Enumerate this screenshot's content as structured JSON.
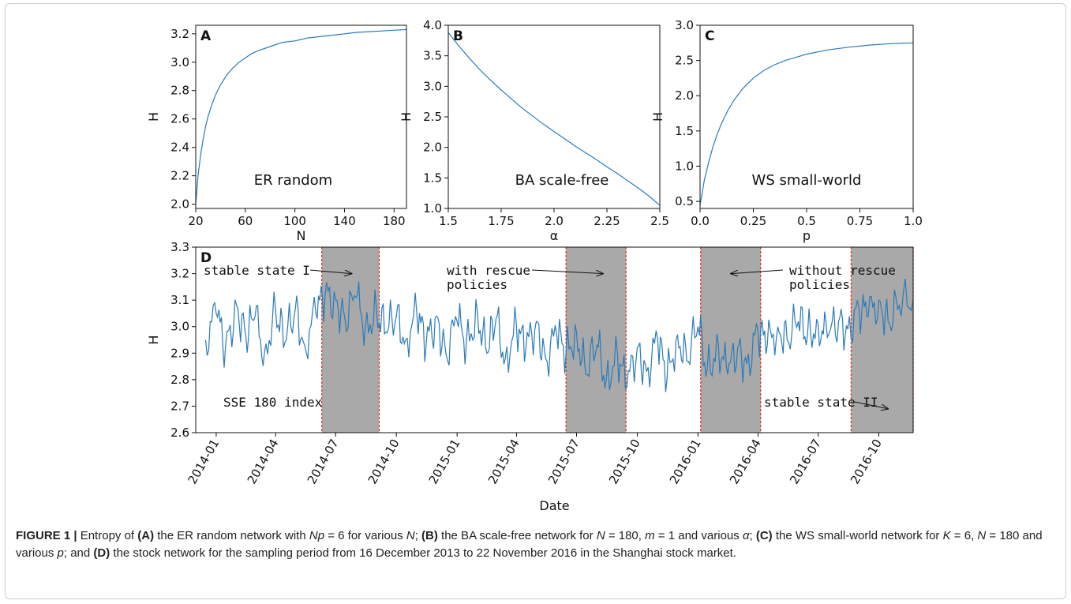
{
  "chart_data": [
    {
      "type": "line",
      "panel_label": "A",
      "annotation": "ER random",
      "xlabel": "N",
      "ylabel": "H",
      "xlim": [
        20,
        190
      ],
      "ylim": [
        1.97,
        3.26
      ],
      "xticks": [
        20,
        60,
        100,
        140,
        180
      ],
      "yticks": [
        2.0,
        2.2,
        2.4,
        2.6,
        2.8,
        3.0,
        3.2
      ],
      "ytick_labels": [
        "2.0",
        "2.2",
        "2.4",
        "2.6",
        "2.8",
        "3.0",
        "3.2"
      ],
      "grid": false,
      "series": [
        {
          "color": "#2b7bba",
          "x": [
            20,
            22,
            24,
            26,
            28,
            30,
            33,
            36,
            40,
            45,
            50,
            55,
            60,
            65,
            70,
            80,
            90,
            100,
            110,
            120,
            130,
            140,
            150,
            160,
            170,
            180,
            190
          ],
          "y": [
            2.0,
            2.21,
            2.35,
            2.46,
            2.55,
            2.62,
            2.7,
            2.77,
            2.84,
            2.91,
            2.96,
            3.0,
            3.03,
            3.06,
            3.08,
            3.11,
            3.14,
            3.15,
            3.17,
            3.18,
            3.19,
            3.2,
            3.21,
            3.215,
            3.22,
            3.225,
            3.23
          ]
        }
      ]
    },
    {
      "type": "line",
      "panel_label": "B",
      "annotation": "BA scale-free",
      "xlabel": "α",
      "ylabel": "H",
      "xlim": [
        1.5,
        2.5
      ],
      "ylim": [
        1.0,
        4.0
      ],
      "xticks": [
        1.5,
        1.75,
        2.0,
        2.25,
        2.5
      ],
      "xtick_labels": [
        "1.5",
        "1.75",
        "2.0",
        "2.25",
        "2.5"
      ],
      "yticks": [
        1.0,
        1.5,
        2.0,
        2.5,
        3.0,
        3.5,
        4.0
      ],
      "ytick_labels": [
        "1.0",
        "1.5",
        "2.0",
        "2.5",
        "3.0",
        "3.5",
        "4.0"
      ],
      "grid": false,
      "series": [
        {
          "color": "#2b7bba",
          "x": [
            1.5,
            1.55,
            1.6,
            1.65,
            1.7,
            1.75,
            1.8,
            1.85,
            1.9,
            1.95,
            2.0,
            2.05,
            2.1,
            2.15,
            2.2,
            2.25,
            2.3,
            2.35,
            2.4,
            2.45,
            2.5
          ],
          "y": [
            3.88,
            3.66,
            3.46,
            3.27,
            3.1,
            2.94,
            2.79,
            2.64,
            2.51,
            2.38,
            2.26,
            2.14,
            2.02,
            1.91,
            1.8,
            1.68,
            1.57,
            1.45,
            1.33,
            1.2,
            1.05
          ]
        }
      ]
    },
    {
      "type": "line",
      "panel_label": "C",
      "annotation": "WS small-world",
      "xlabel": "p",
      "ylabel": "H",
      "xlim": [
        0.0,
        1.0
      ],
      "ylim": [
        0.4,
        3.0
      ],
      "xticks": [
        0.0,
        0.25,
        0.5,
        0.75,
        1.0
      ],
      "xtick_labels": [
        "0.0",
        "0.25",
        "0.5",
        "0.75",
        "1.0"
      ],
      "yticks": [
        0.5,
        1.0,
        1.5,
        2.0,
        2.5,
        3.0
      ],
      "ytick_labels": [
        "0.5",
        "1.0",
        "1.5",
        "2.0",
        "2.5",
        "3.0"
      ],
      "grid": false,
      "series": [
        {
          "color": "#2b7bba",
          "x": [
            0.0,
            0.01,
            0.02,
            0.04,
            0.06,
            0.08,
            0.1,
            0.13,
            0.16,
            0.2,
            0.25,
            0.3,
            0.35,
            0.4,
            0.5,
            0.6,
            0.7,
            0.8,
            0.9,
            1.0
          ],
          "y": [
            0.45,
            0.62,
            0.8,
            1.05,
            1.27,
            1.45,
            1.6,
            1.79,
            1.94,
            2.1,
            2.25,
            2.36,
            2.44,
            2.5,
            2.59,
            2.65,
            2.69,
            2.72,
            2.74,
            2.75
          ]
        }
      ]
    },
    {
      "type": "line",
      "panel_label": "D",
      "xlabel": "Date",
      "ylabel": "H",
      "xlim": [
        "2013-12-01",
        "2016-11-22"
      ],
      "ylim": [
        2.6,
        3.3
      ],
      "xtick_dates": [
        "2014-01-01",
        "2014-04-01",
        "2014-07-01",
        "2014-10-01",
        "2015-01-01",
        "2015-04-01",
        "2015-07-01",
        "2015-10-01",
        "2016-01-01",
        "2016-04-01",
        "2016-07-01",
        "2016-10-01"
      ],
      "xtick_labels": [
        "2014-01",
        "2014-04",
        "2014-07",
        "2014-10",
        "2015-01",
        "2015-04",
        "2015-07",
        "2015-10",
        "2016-01",
        "2016-04",
        "2016-07",
        "2016-10"
      ],
      "yticks": [
        2.6,
        2.7,
        2.8,
        2.9,
        3.0,
        3.1,
        3.2,
        3.3
      ],
      "ytick_labels": [
        "2.6",
        "2.7",
        "2.8",
        "2.9",
        "3.0",
        "3.1",
        "3.2",
        "3.3"
      ],
      "grid": false,
      "shaded_periods": [
        [
          "2014-06-10",
          "2014-09-05"
        ],
        [
          "2015-06-15",
          "2015-09-14"
        ],
        [
          "2016-01-05",
          "2016-04-05"
        ],
        [
          "2016-08-20",
          "2016-11-22"
        ]
      ],
      "shade_color": "#a9a9a9",
      "boundary_color": "#e0301e",
      "annotations": [
        {
          "text": "stable state I",
          "arrow_to_date": "2014-07-25",
          "arrow_to_y": 3.2
        },
        {
          "text": "with rescue",
          "text2": "policies",
          "arrow_to_date": "2015-08-10",
          "arrow_to_y": 3.2
        },
        {
          "text": "without rescue",
          "text2": "policies",
          "arrow_to_date": "2016-02-20",
          "arrow_to_y": 3.2
        },
        {
          "text": "SSE 180 index"
        },
        {
          "text": "stable state II",
          "arrow_to_date": "2016-10-15",
          "arrow_to_y": 2.69
        }
      ],
      "series": [
        {
          "color": "#2b7bba",
          "x": [
            "2013-12-16",
            "2014-01-01",
            "2014-01-15",
            "2014-02-01",
            "2014-02-15",
            "2014-03-01",
            "2014-03-15",
            "2014-04-01",
            "2014-04-15",
            "2014-05-01",
            "2014-05-15",
            "2014-06-01",
            "2014-06-15",
            "2014-07-01",
            "2014-07-15",
            "2014-08-01",
            "2014-08-15",
            "2014-09-01",
            "2014-09-15",
            "2014-10-01",
            "2014-10-15",
            "2014-11-01",
            "2014-11-15",
            "2014-12-01",
            "2014-12-15",
            "2015-01-01",
            "2015-01-15",
            "2015-02-01",
            "2015-02-15",
            "2015-03-01",
            "2015-03-15",
            "2015-04-01",
            "2015-04-15",
            "2015-05-01",
            "2015-05-15",
            "2015-06-01",
            "2015-06-15",
            "2015-07-01",
            "2015-07-15",
            "2015-08-01",
            "2015-08-15",
            "2015-09-01",
            "2015-09-15",
            "2015-10-01",
            "2015-10-15",
            "2015-11-01",
            "2015-11-15",
            "2015-12-01",
            "2015-12-15",
            "2016-01-01",
            "2016-01-15",
            "2016-02-01",
            "2016-02-15",
            "2016-03-01",
            "2016-03-15",
            "2016-04-01",
            "2016-04-15",
            "2016-05-01",
            "2016-05-15",
            "2016-06-01",
            "2016-06-15",
            "2016-07-01",
            "2016-07-15",
            "2016-08-01",
            "2016-08-15",
            "2016-09-01",
            "2016-09-15",
            "2016-10-01",
            "2016-10-15",
            "2016-11-01",
            "2016-11-22"
          ],
          "y": [
            2.95,
            3.05,
            2.92,
            3.08,
            2.96,
            3.04,
            2.9,
            3.06,
            2.94,
            3.07,
            2.93,
            3.05,
            3.12,
            3.1,
            3.03,
            3.11,
            3.0,
            3.06,
            2.98,
            3.04,
            2.95,
            3.05,
            2.93,
            3.04,
            2.9,
            3.02,
            2.94,
            3.05,
            2.9,
            3.03,
            2.88,
            3.0,
            2.91,
            3.02,
            2.88,
            2.97,
            2.9,
            2.98,
            2.82,
            2.93,
            2.8,
            2.9,
            2.77,
            2.92,
            2.83,
            2.95,
            2.8,
            2.97,
            2.87,
            3.0,
            2.84,
            2.93,
            2.82,
            2.92,
            2.86,
            2.98,
            2.93,
            3.0,
            2.95,
            3.02,
            2.97,
            3.01,
            2.96,
            3.02,
            2.99,
            3.07,
            3.04,
            3.1,
            3.02,
            3.08,
            3.1
          ]
        }
      ]
    }
  ],
  "caption": {
    "label": "FIGURE 1 |",
    "t1": " Entropy of ",
    "b1": "(A)",
    "t2": " the ER random network with ",
    "m1": "Np",
    "t3": " = 6 for various ",
    "m2": "N",
    "t4": "; ",
    "b2": "(B)",
    "t5": " the BA scale-free network for ",
    "m3": "N",
    "t6": " = 180, ",
    "m4": "m",
    "t7": " = 1 and various ",
    "m5": "α",
    "t8": "; ",
    "b3": "(C)",
    "t9": " the WS small-world network for ",
    "m6": "K",
    "t10": " = 6, ",
    "m7": "N",
    "t11": " = 180 and various ",
    "m8": "p",
    "t12": "; and ",
    "b4": "(D)",
    "t13": " the stock network for the sampling period from 16 December 2013 to 22 November 2016 in the Shanghai stock market."
  }
}
